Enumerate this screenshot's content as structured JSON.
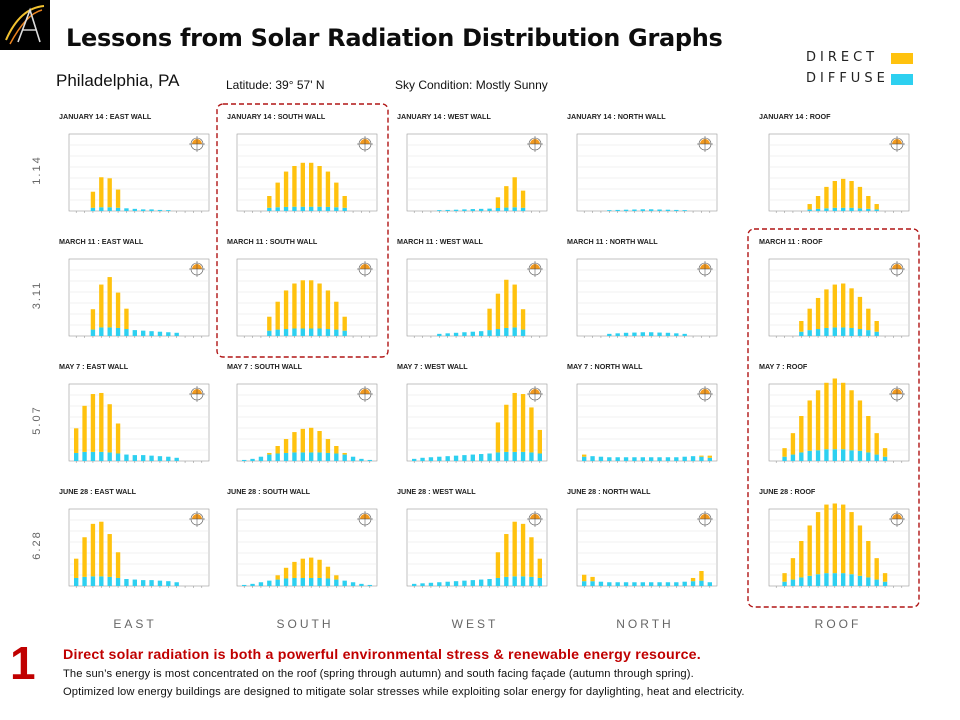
{
  "title": "Lessons from Solar Radiation Distribution Graphs",
  "location": "Philadelphia, PA",
  "latitude": "Latitude: 39° 57' N",
  "sky_condition": "Sky Condition: Mostly Sunny",
  "legend": {
    "direct": "DIRECT",
    "diffuse": "DIFFUSE"
  },
  "colors": {
    "direct": "#ffc20e",
    "diffuse": "#2dd0f0",
    "highlight": "#b01515",
    "lesson": "#c00000"
  },
  "row_labels": [
    "1.14",
    "3.11",
    "5.07",
    "6.28"
  ],
  "column_labels": [
    "EAST",
    "SOUTH",
    "WEST",
    "NORTH",
    "ROOF"
  ],
  "footer": {
    "number": "1",
    "headline": "Direct solar radiation is both a powerful environmental stress & renewable energy resource.",
    "line1": "The sun’s energy is most concentrated on the roof (spring through autumn) and south facing façade (autumn through spring).",
    "line2": "Optimized low energy buildings are designed to mitigate solar stresses while exploiting solar energy for daylighting, heat and electricity."
  },
  "highlighted_panels": [
    "JANUARY 14 : SOUTH WALL",
    "MARCH 11 : SOUTH WALL",
    "MARCH 11 : ROOF",
    "MAY 7 : ROOF",
    "JUNE 28 : ROOF"
  ],
  "chart_data": [
    {
      "type": "bar",
      "title": "JANUARY 14 : EAST WALL",
      "series": [
        {
          "name": "DIRECT",
          "values": [
            0,
            0,
            150,
            280,
            270,
            170,
            0,
            0,
            0,
            0,
            0,
            0,
            0,
            0,
            0,
            0
          ]
        },
        {
          "name": "DIFFUSE",
          "values": [
            0,
            0,
            30,
            35,
            35,
            30,
            25,
            20,
            15,
            15,
            10,
            8,
            0,
            0,
            0,
            0
          ]
        }
      ],
      "ylim": [
        0,
        700
      ]
    },
    {
      "type": "bar",
      "title": "JANUARY 14 : SOUTH WALL",
      "series": [
        {
          "name": "DIRECT",
          "values": [
            0,
            0,
            0,
            110,
            230,
            330,
            380,
            410,
            410,
            380,
            330,
            230,
            110,
            0,
            0,
            0
          ]
        },
        {
          "name": "DIFFUSE",
          "values": [
            0,
            0,
            0,
            30,
            35,
            38,
            40,
            40,
            40,
            40,
            38,
            35,
            30,
            0,
            0,
            0
          ]
        }
      ],
      "ylim": [
        0,
        700
      ]
    },
    {
      "type": "bar",
      "title": "JANUARY 14 : WEST WALL",
      "series": [
        {
          "name": "DIRECT",
          "values": [
            0,
            0,
            0,
            0,
            0,
            0,
            0,
            0,
            0,
            0,
            100,
            200,
            280,
            160,
            0,
            0
          ]
        },
        {
          "name": "DIFFUSE",
          "values": [
            0,
            0,
            0,
            8,
            10,
            12,
            15,
            18,
            20,
            22,
            28,
            32,
            35,
            30,
            0,
            0
          ]
        }
      ],
      "ylim": [
        0,
        700
      ]
    },
    {
      "type": "bar",
      "title": "JANUARY 14 : NORTH WALL",
      "series": [
        {
          "name": "DIRECT",
          "values": [
            0,
            0,
            0,
            0,
            0,
            0,
            0,
            0,
            0,
            0,
            0,
            0,
            0,
            0,
            0,
            0
          ]
        },
        {
          "name": "DIFFUSE",
          "values": [
            0,
            0,
            0,
            8,
            10,
            12,
            14,
            16,
            16,
            14,
            12,
            10,
            8,
            0,
            0,
            0
          ]
        }
      ],
      "ylim": [
        0,
        700
      ]
    },
    {
      "type": "bar",
      "title": "JANUARY 14 : ROOF",
      "series": [
        {
          "name": "DIRECT",
          "values": [
            0,
            0,
            0,
            0,
            50,
            120,
            200,
            250,
            270,
            250,
            200,
            120,
            50,
            0,
            0,
            0
          ]
        },
        {
          "name": "DIFFUSE",
          "values": [
            0,
            0,
            0,
            0,
            15,
            20,
            25,
            30,
            30,
            30,
            25,
            20,
            15,
            0,
            0,
            0
          ]
        }
      ],
      "ylim": [
        0,
        700
      ]
    },
    {
      "type": "bar",
      "title": "MARCH 11 : EAST WALL",
      "series": [
        {
          "name": "DIRECT",
          "values": [
            0,
            0,
            190,
            400,
            470,
            330,
            190,
            0,
            0,
            0,
            0,
            0,
            0,
            0,
            0,
            0
          ]
        },
        {
          "name": "DIFFUSE",
          "values": [
            0,
            0,
            60,
            80,
            80,
            75,
            65,
            55,
            50,
            45,
            40,
            35,
            30,
            0,
            0,
            0
          ]
        }
      ],
      "ylim": [
        0,
        700
      ]
    },
    {
      "type": "bar",
      "title": "MARCH 11 : SOUTH WALL",
      "series": [
        {
          "name": "DIRECT",
          "values": [
            0,
            0,
            0,
            130,
            260,
            360,
            420,
            450,
            450,
            420,
            360,
            260,
            130,
            0,
            0,
            0
          ]
        },
        {
          "name": "DIFFUSE",
          "values": [
            0,
            0,
            0,
            50,
            60,
            65,
            70,
            70,
            70,
            70,
            65,
            60,
            50,
            0,
            0,
            0
          ]
        }
      ],
      "ylim": [
        0,
        700
      ]
    },
    {
      "type": "bar",
      "title": "MARCH 11 : WEST WALL",
      "series": [
        {
          "name": "DIRECT",
          "values": [
            0,
            0,
            0,
            0,
            0,
            0,
            0,
            0,
            0,
            200,
            330,
            450,
            400,
            190,
            0,
            0
          ]
        },
        {
          "name": "DIFFUSE",
          "values": [
            0,
            0,
            0,
            20,
            25,
            30,
            35,
            40,
            45,
            55,
            65,
            75,
            80,
            60,
            0,
            0
          ]
        }
      ],
      "ylim": [
        0,
        700
      ]
    },
    {
      "type": "bar",
      "title": "MARCH 11 : NORTH WALL",
      "series": [
        {
          "name": "DIRECT",
          "values": [
            0,
            0,
            0,
            0,
            0,
            0,
            0,
            0,
            0,
            0,
            0,
            0,
            0,
            0,
            0,
            0
          ]
        },
        {
          "name": "DIFFUSE",
          "values": [
            0,
            0,
            0,
            20,
            25,
            30,
            32,
            35,
            35,
            32,
            30,
            25,
            20,
            0,
            0,
            0
          ]
        }
      ],
      "ylim": [
        0,
        700
      ]
    },
    {
      "type": "bar",
      "title": "MARCH 11 : ROOF",
      "series": [
        {
          "name": "DIRECT",
          "values": [
            0,
            0,
            0,
            100,
            200,
            290,
            360,
            400,
            410,
            370,
            300,
            200,
            100,
            0,
            0,
            0
          ]
        },
        {
          "name": "DIFFUSE",
          "values": [
            0,
            0,
            0,
            40,
            55,
            65,
            75,
            80,
            80,
            75,
            65,
            55,
            40,
            0,
            0,
            0
          ]
        }
      ],
      "ylim": [
        0,
        700
      ]
    },
    {
      "type": "bar",
      "title": "MAY 7 : EAST WALL",
      "series": [
        {
          "name": "DIRECT",
          "values": [
            230,
            430,
            540,
            550,
            450,
            280,
            0,
            0,
            0,
            0,
            0,
            0,
            0,
            0,
            0,
            0
          ]
        },
        {
          "name": "DIFFUSE",
          "values": [
            75,
            85,
            85,
            85,
            80,
            70,
            60,
            55,
            55,
            50,
            45,
            40,
            30,
            0,
            0,
            0
          ]
        }
      ],
      "ylim": [
        0,
        700
      ]
    },
    {
      "type": "bar",
      "title": "MAY 7 : SOUTH WALL",
      "series": [
        {
          "name": "DIRECT",
          "values": [
            0,
            0,
            0,
            15,
            70,
            130,
            190,
            220,
            230,
            200,
            130,
            70,
            15,
            0,
            0,
            0
          ]
        },
        {
          "name": "DIFFUSE",
          "values": [
            10,
            20,
            40,
            60,
            70,
            75,
            80,
            80,
            80,
            80,
            75,
            70,
            60,
            40,
            20,
            10
          ]
        }
      ],
      "ylim": [
        0,
        700
      ]
    },
    {
      "type": "bar",
      "title": "MAY 7 : WEST WALL",
      "series": [
        {
          "name": "DIRECT",
          "values": [
            0,
            0,
            0,
            0,
            0,
            0,
            0,
            0,
            0,
            0,
            280,
            440,
            550,
            540,
            420,
            220
          ]
        },
        {
          "name": "DIFFUSE",
          "values": [
            20,
            30,
            35,
            40,
            45,
            50,
            55,
            60,
            65,
            70,
            80,
            85,
            85,
            85,
            80,
            70
          ]
        }
      ],
      "ylim": [
        0,
        700
      ]
    },
    {
      "type": "bar",
      "title": "MAY 7 : NORTH WALL",
      "series": [
        {
          "name": "DIRECT",
          "values": [
            20,
            0,
            0,
            0,
            0,
            0,
            0,
            0,
            0,
            0,
            0,
            0,
            0,
            0,
            10,
            20
          ]
        },
        {
          "name": "DIFFUSE",
          "values": [
            40,
            45,
            40,
            35,
            35,
            35,
            35,
            35,
            35,
            35,
            35,
            35,
            40,
            45,
            40,
            30
          ]
        }
      ],
      "ylim": [
        0,
        700
      ]
    },
    {
      "type": "bar",
      "title": "MAY 7 : ROOF",
      "series": [
        {
          "name": "DIRECT",
          "values": [
            0,
            80,
            200,
            340,
            470,
            560,
            620,
            660,
            620,
            560,
            470,
            340,
            200,
            80,
            0,
            0
          ]
        },
        {
          "name": "DIFFUSE",
          "values": [
            0,
            40,
            60,
            80,
            95,
            100,
            110,
            110,
            110,
            100,
            95,
            80,
            60,
            40,
            0,
            0
          ]
        }
      ],
      "ylim": [
        0,
        700
      ]
    },
    {
      "type": "bar",
      "title": "JUNE 28 : EAST WALL",
      "series": [
        {
          "name": "DIRECT",
          "values": [
            180,
            370,
            490,
            510,
            400,
            240,
            0,
            0,
            0,
            0,
            0,
            0,
            0,
            0,
            0,
            0
          ]
        },
        {
          "name": "DIFFUSE",
          "values": [
            75,
            85,
            90,
            90,
            85,
            75,
            65,
            60,
            55,
            55,
            50,
            45,
            35,
            0,
            0,
            0
          ]
        }
      ],
      "ylim": [
        0,
        700
      ]
    },
    {
      "type": "bar",
      "title": "JUNE 28 : SOUTH WALL",
      "series": [
        {
          "name": "DIRECT",
          "values": [
            0,
            0,
            0,
            0,
            40,
            100,
            150,
            180,
            190,
            170,
            110,
            40,
            0,
            0,
            0,
            0
          ]
        },
        {
          "name": "DIFFUSE",
          "values": [
            10,
            20,
            35,
            50,
            60,
            70,
            75,
            75,
            75,
            75,
            70,
            60,
            50,
            35,
            20,
            10
          ]
        }
      ],
      "ylim": [
        0,
        700
      ]
    },
    {
      "type": "bar",
      "title": "JUNE 28 : WEST WALL",
      "series": [
        {
          "name": "DIRECT",
          "values": [
            0,
            0,
            0,
            0,
            0,
            0,
            0,
            0,
            0,
            0,
            240,
            400,
            510,
            490,
            370,
            180
          ]
        },
        {
          "name": "DIFFUSE",
          "values": [
            20,
            25,
            30,
            35,
            40,
            45,
            50,
            55,
            60,
            65,
            75,
            85,
            90,
            90,
            85,
            75
          ]
        }
      ],
      "ylim": [
        0,
        700
      ]
    },
    {
      "type": "bar",
      "title": "JUNE 28 : NORTH WALL",
      "series": [
        {
          "name": "DIRECT",
          "values": [
            60,
            40,
            0,
            0,
            0,
            0,
            0,
            0,
            0,
            0,
            0,
            0,
            0,
            30,
            90,
            0
          ]
        },
        {
          "name": "DIFFUSE",
          "values": [
            45,
            45,
            40,
            35,
            35,
            35,
            35,
            35,
            35,
            35,
            35,
            35,
            40,
            45,
            50,
            35
          ]
        }
      ],
      "ylim": [
        0,
        700
      ]
    },
    {
      "type": "bar",
      "title": "JUNE 28 : ROOF",
      "series": [
        {
          "name": "DIRECT",
          "values": [
            0,
            80,
            200,
            340,
            470,
            580,
            640,
            650,
            640,
            580,
            470,
            340,
            200,
            80,
            0,
            0
          ]
        },
        {
          "name": "DIFFUSE",
          "values": [
            0,
            40,
            60,
            80,
            95,
            110,
            120,
            120,
            120,
            110,
            95,
            80,
            60,
            40,
            0,
            0
          ]
        }
      ],
      "ylim": [
        0,
        700
      ]
    }
  ]
}
